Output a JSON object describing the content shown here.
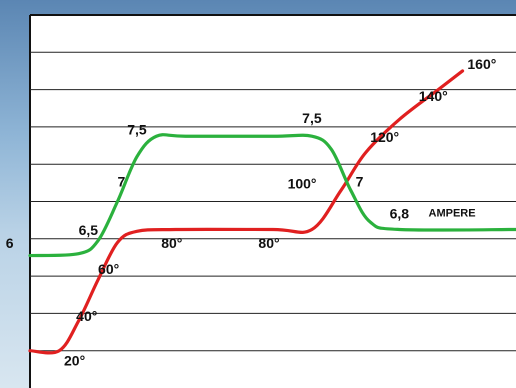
{
  "chart_data": {
    "type": "line",
    "title": "",
    "xlabel": "",
    "ylabel": "",
    "grid": true,
    "background": "#ffffff",
    "series": [
      {
        "color": "#e02020",
        "points": [
          {
            "x": 0,
            "y": 1.0
          },
          {
            "x": 6,
            "y": 1.0
          },
          {
            "x": 10,
            "y": 1.8
          },
          {
            "x": 14,
            "y": 2.9
          },
          {
            "x": 18,
            "y": 3.9
          },
          {
            "x": 22,
            "y": 4.2
          },
          {
            "x": 30,
            "y": 4.25
          },
          {
            "x": 50,
            "y": 4.25
          },
          {
            "x": 58,
            "y": 4.25
          },
          {
            "x": 64,
            "y": 5.3
          },
          {
            "x": 69,
            "y": 6.3
          },
          {
            "x": 76,
            "y": 7.2
          },
          {
            "x": 84,
            "y": 8.0
          },
          {
            "x": 89,
            "y": 8.5
          }
        ],
        "labels": [
          {
            "text": "20°",
            "x": 7,
            "y": 0.6
          },
          {
            "text": "40°",
            "x": 9.5,
            "y": 1.8
          },
          {
            "text": "60°",
            "x": 14,
            "y": 3.05
          },
          {
            "text": "80°",
            "x": 27,
            "y": 3.75
          },
          {
            "text": "80°",
            "x": 47,
            "y": 3.75
          },
          {
            "text": "100°",
            "x": 53,
            "y": 5.35
          },
          {
            "text": "120°",
            "x": 70,
            "y": 6.6
          },
          {
            "text": "140°",
            "x": 80,
            "y": 7.7
          },
          {
            "text": "160°",
            "x": 90,
            "y": 8.55
          }
        ]
      },
      {
        "color": "#2bb13d",
        "points": [
          {
            "x": 0,
            "y": 3.55
          },
          {
            "x": 10,
            "y": 3.6
          },
          {
            "x": 14,
            "y": 3.95
          },
          {
            "x": 18,
            "y": 5.0
          },
          {
            "x": 22,
            "y": 6.2
          },
          {
            "x": 26,
            "y": 6.75
          },
          {
            "x": 32,
            "y": 6.75
          },
          {
            "x": 50,
            "y": 6.75
          },
          {
            "x": 58,
            "y": 6.75
          },
          {
            "x": 62,
            "y": 6.4
          },
          {
            "x": 66,
            "y": 5.3
          },
          {
            "x": 70,
            "y": 4.45
          },
          {
            "x": 76,
            "y": 4.25
          },
          {
            "x": 100,
            "y": 4.25
          }
        ],
        "labels": [
          {
            "text": "6",
            "x": -5,
            "y": 3.75
          },
          {
            "text": "6,5",
            "x": 10,
            "y": 4.1
          },
          {
            "text": "7",
            "x": 18,
            "y": 5.4
          },
          {
            "text": "7,5",
            "x": 20,
            "y": 6.8
          },
          {
            "text": "7,5",
            "x": 56,
            "y": 7.1
          },
          {
            "text": "7",
            "x": 67,
            "y": 5.4
          },
          {
            "text": "6,8",
            "x": 74,
            "y": 4.55
          }
        ]
      }
    ],
    "annotations": [
      {
        "text": "AMPERE",
        "x": 82,
        "y": 4.6
      }
    ],
    "xlim": [
      0,
      100
    ],
    "ylim": [
      0,
      10
    ]
  }
}
